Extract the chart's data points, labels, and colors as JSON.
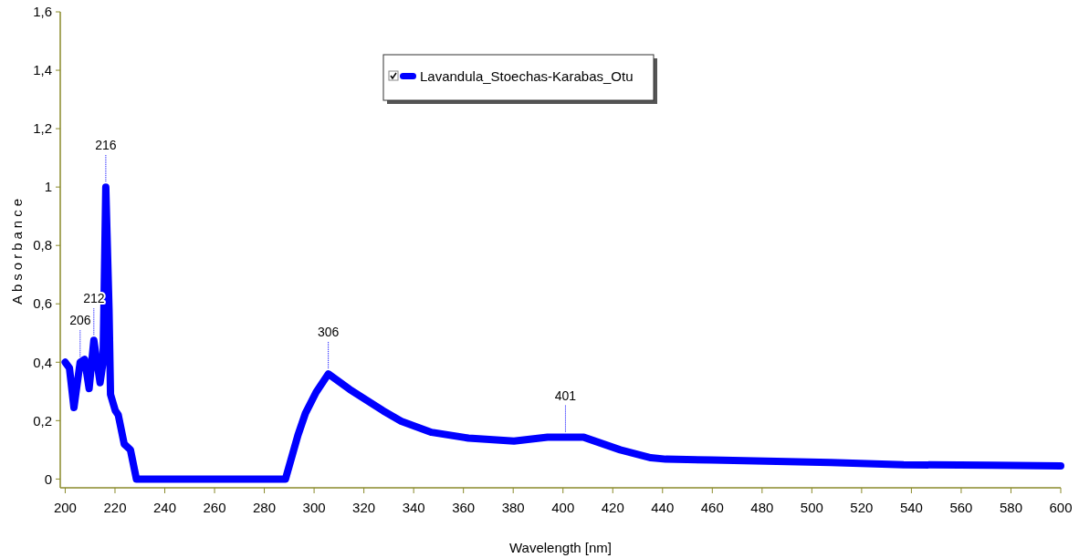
{
  "chart_data": {
    "type": "line",
    "xlabel": "Wavelength [nm]",
    "ylabel": "Absorbance",
    "legend": "top",
    "x": [
      200,
      201.7,
      203.5,
      206,
      207.8,
      209.6,
      211.5,
      214,
      215.2,
      216.3,
      217.6,
      218.2,
      220.1,
      221.3,
      223.7,
      226.2,
      228.6,
      260,
      288.5,
      293.5,
      296.5,
      300.8,
      305.7,
      314.3,
      327.7,
      335,
      347.2,
      362,
      380.3,
      393.8,
      408.4,
      423,
      435.3,
      441.3,
      459.8,
      507.5,
      536.9,
      572.3,
      600
    ],
    "series": [
      {
        "name": "Lavandula_Stoechas-Karabas_Otu",
        "color": "#0000ff",
        "values": [
          0.4,
          0.38,
          0.245,
          0.4,
          0.41,
          0.31,
          0.475,
          0.33,
          0.4,
          1.0,
          0.58,
          0.29,
          0.235,
          0.22,
          0.12,
          0.1,
          0,
          0,
          0,
          0.15,
          0.225,
          0.297,
          0.36,
          0.307,
          0.234,
          0.198,
          0.16,
          0.14,
          0.13,
          0.143,
          0.143,
          0.1,
          0.073,
          0.068,
          0.065,
          0.057,
          0.049,
          0.047,
          0.045
        ]
      }
    ],
    "xlim": [
      198,
      600
    ],
    "xticks": [
      200,
      220,
      240,
      260,
      280,
      300,
      320,
      340,
      360,
      380,
      400,
      420,
      440,
      460,
      480,
      500,
      520,
      540,
      560,
      580,
      600
    ],
    "ylim": [
      -0.03,
      1.6
    ],
    "yticks": [
      0,
      {
        "value": 0.2,
        "label": "0,2"
      },
      {
        "value": 0.4,
        "label": "0,4"
      },
      {
        "value": 0.6,
        "label": "0,6"
      },
      {
        "value": 0.8,
        "label": "0,8"
      },
      1,
      {
        "value": 1.2,
        "label": "1,2"
      },
      {
        "value": 1.4,
        "label": "1,4"
      },
      {
        "value": 1.6,
        "label": "1,6"
      }
    ],
    "annotations": [
      {
        "text": "206",
        "x": 206,
        "y": 0.4
      },
      {
        "text": "212",
        "x": 211.5,
        "y": 0.475
      },
      {
        "text": "216",
        "x": 216.3,
        "y": 1.0
      },
      {
        "text": "306",
        "x": 305.7,
        "y": 0.36
      },
      {
        "text": "401",
        "x": 401,
        "y": 0.143
      }
    ]
  }
}
